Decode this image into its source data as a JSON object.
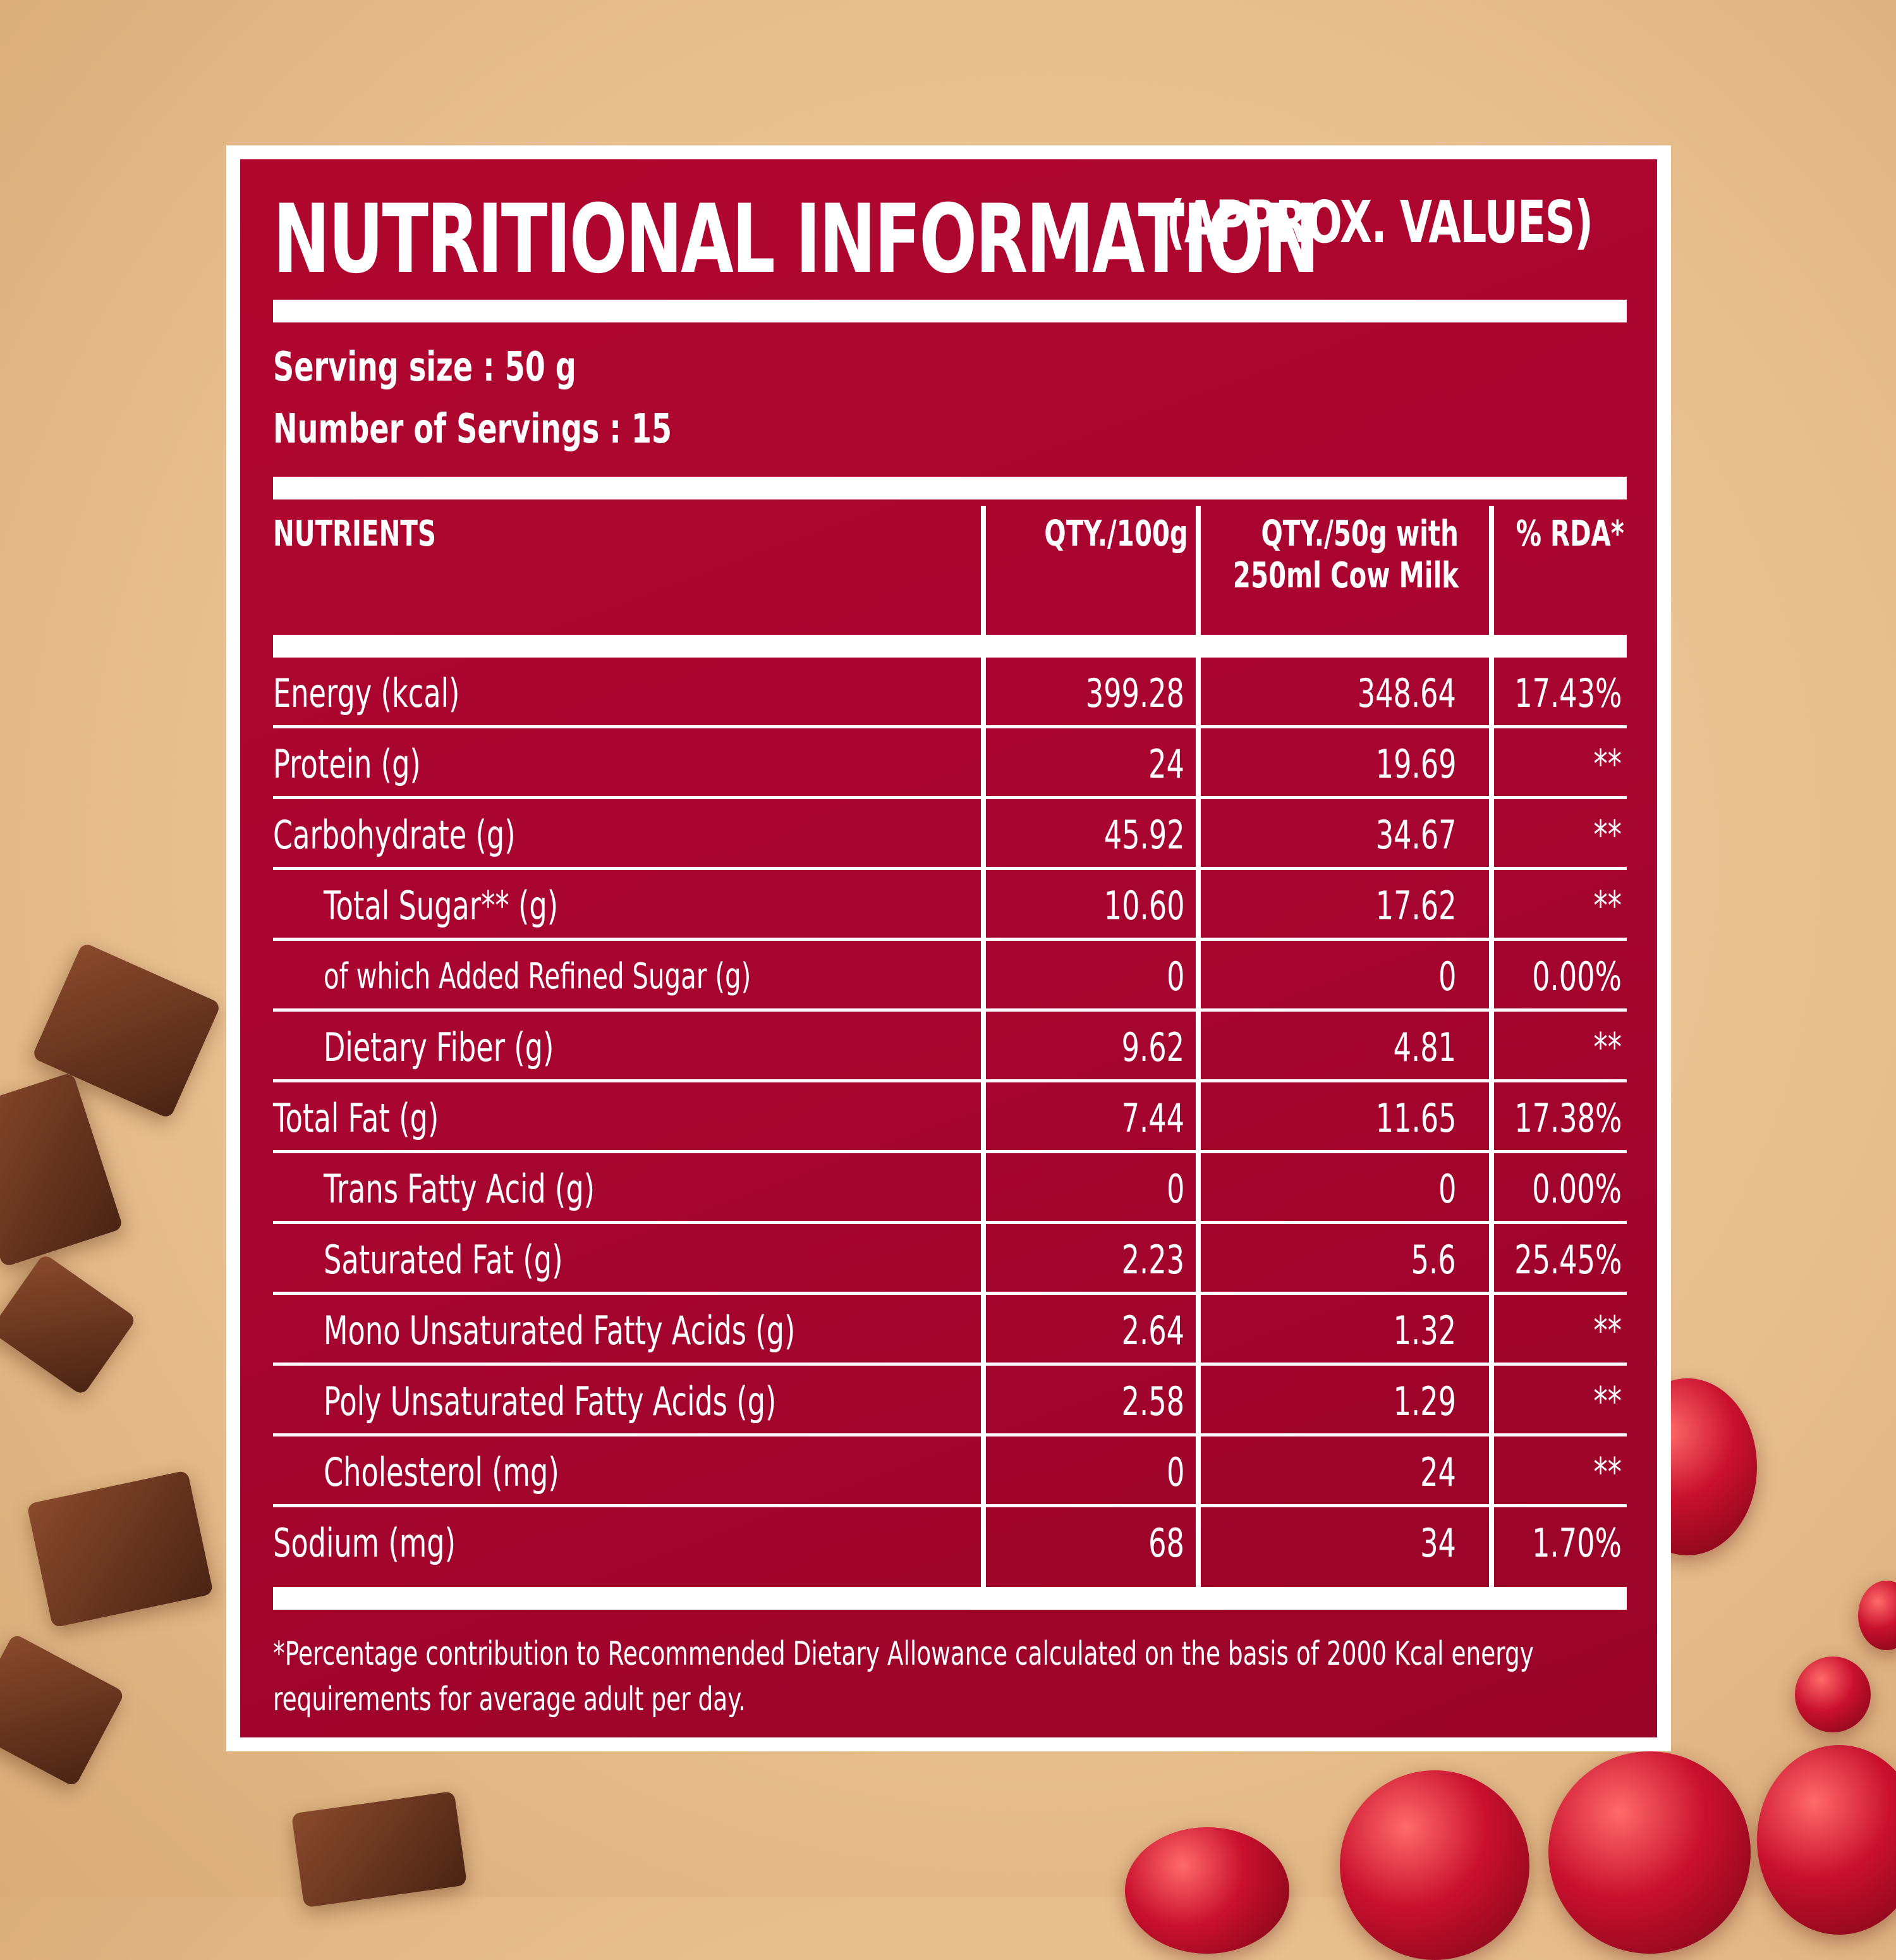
{
  "title": {
    "main": "NUTRITIONAL INFORMATION",
    "sub": "(APPROX. VALUES)"
  },
  "serving": {
    "size": "Serving size : 50 g",
    "count": "Number of Servings : 15"
  },
  "table": {
    "headers": {
      "nutrients": "NUTRIENTS",
      "qty100": "QTY./100g",
      "qty50_line1": "QTY./50g with",
      "qty50_line2": "250ml Cow Milk",
      "rda": "% RDA*"
    },
    "rows": [
      {
        "name": "Energy (kcal)",
        "qty100": "399.28",
        "qty50": "348.64",
        "rda": "17.43%"
      },
      {
        "name": "Protein (g)",
        "qty100": "24",
        "qty50": "19.69",
        "rda": "**"
      },
      {
        "name": "Carbohydrate (g)",
        "qty100": "45.92",
        "qty50": "34.67",
        "rda": "**"
      },
      {
        "name": "Total Sugar** (g)",
        "qty100": "10.60",
        "qty50": "17.62",
        "rda": "**"
      },
      {
        "name": "of which Added Refined Sugar (g)",
        "qty100": "0",
        "qty50": "0",
        "rda": "0.00%"
      },
      {
        "name": "Dietary Fiber (g)",
        "qty100": "9.62",
        "qty50": "4.81",
        "rda": "**"
      },
      {
        "name": "Total Fat (g)",
        "qty100": "7.44",
        "qty50": "11.65",
        "rda": "17.38%"
      },
      {
        "name": "Trans Fatty Acid (g)",
        "qty100": "0",
        "qty50": "0",
        "rda": "0.00%"
      },
      {
        "name": "Saturated Fat (g)",
        "qty100": "2.23",
        "qty50": "5.6",
        "rda": "25.45%"
      },
      {
        "name": "Mono Unsaturated Fatty Acids (g)",
        "qty100": "2.64",
        "qty50": "1.32",
        "rda": "**"
      },
      {
        "name": "Poly Unsaturated Fatty Acids (g)",
        "qty100": "2.58",
        "qty50": "1.29",
        "rda": "**"
      },
      {
        "name": "Cholesterol (mg)",
        "qty100": "0",
        "qty50": "24",
        "rda": "**"
      },
      {
        "name": "Sodium (mg)",
        "qty100": "68",
        "qty50": "34",
        "rda": "1.70%"
      }
    ]
  },
  "footnote": {
    "line1": "*Percentage contribution to Recommended Dietary Allowance calculated on the basis of 2000 Kcal energy",
    "line2": "requirements for average adult per day."
  },
  "colors": {
    "panel_red": "#a80530",
    "border": "#ffffff",
    "background": "#e8c08f"
  }
}
